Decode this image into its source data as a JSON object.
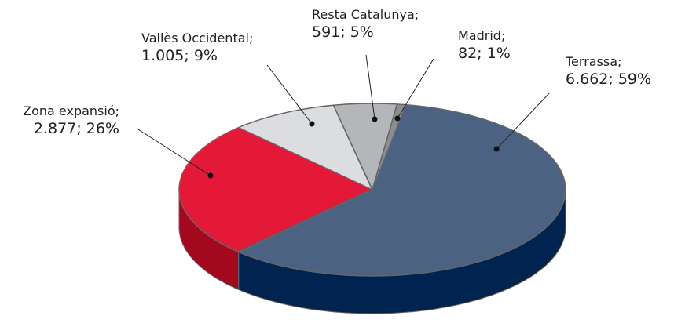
{
  "chart_data": {
    "type": "pie",
    "categories": [
      "Terrassa;",
      "Zona expansió;",
      "Vallès Occidental;",
      "Resta Catalunya;",
      "Madrid;"
    ],
    "values": [
      6662,
      2877,
      1005,
      591,
      82
    ],
    "value_labels": [
      "6.662; 59%",
      "2.877; 26%",
      "1.005; 9%",
      "591; 5%",
      "82; 1%"
    ],
    "colors": [
      "#4b6282",
      "#e31937",
      "#dcdde0",
      "#b5b6ba",
      "#8c8d90"
    ],
    "side_colors": [
      "#00234f",
      "#a3081f",
      "#b8b9bc",
      "#939498",
      "#6e6f72"
    ]
  }
}
